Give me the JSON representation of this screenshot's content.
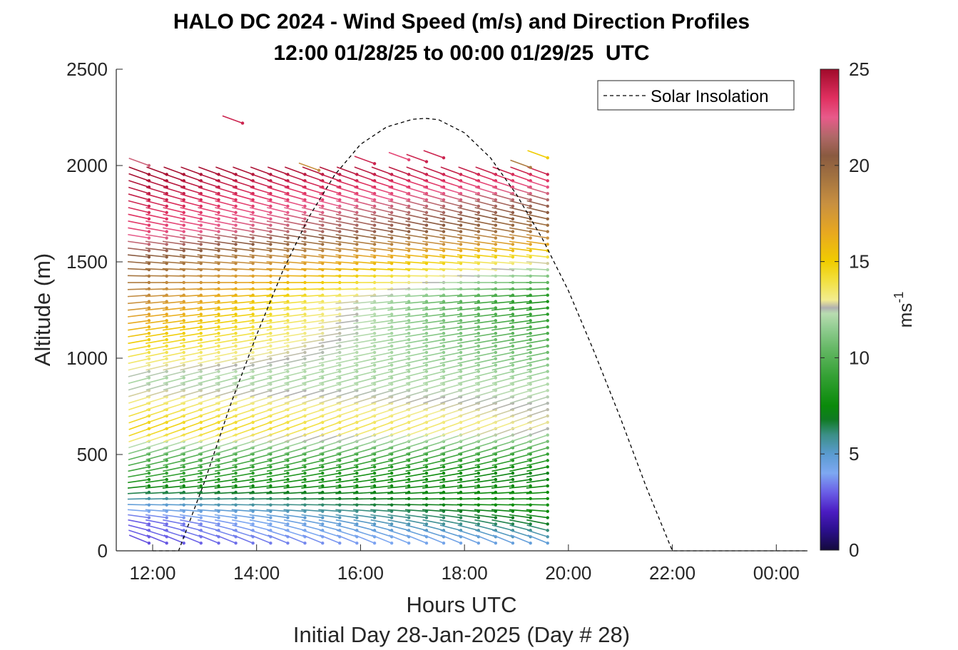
{
  "chart_data": {
    "type": "scatter",
    "subtype": "wind-barb-profile",
    "title": "HALO DC 2024 - Wind Speed (m/s) and Direction Profiles",
    "subtitle": "12:00 01/28/25 to 00:00 01/29/25  UTC",
    "xlabel": "Hours UTC",
    "xlabel2": "Initial Day 28-Jan-2025 (Day # 28)",
    "ylabel": "Altitude (m)",
    "xlim": [
      11.3,
      24.6
    ],
    "ylim": [
      0,
      2500
    ],
    "x_ticks": [
      12,
      14,
      16,
      18,
      20,
      22,
      24
    ],
    "x_tick_labels": [
      "12:00",
      "14:00",
      "16:00",
      "18:00",
      "20:00",
      "22:00",
      "00:00"
    ],
    "y_ticks": [
      0,
      500,
      1000,
      1500,
      2000,
      2500
    ],
    "y_tick_labels": [
      "0",
      "500",
      "1000",
      "1500",
      "2000",
      "2500"
    ],
    "colorbar": {
      "label_base": "ms",
      "label_exp": "-1",
      "range": [
        0,
        25
      ],
      "ticks": [
        0,
        5,
        10,
        15,
        20,
        25
      ],
      "tick_labels": [
        "0",
        "5",
        "10",
        "15",
        "20",
        "25"
      ]
    },
    "legend": {
      "placement": "top-right",
      "entries": [
        "Solar Insolation"
      ]
    },
    "solar_insolation": {
      "x": [
        12.0,
        12.5,
        13.0,
        13.5,
        14.0,
        14.5,
        15.0,
        15.5,
        16.0,
        16.5,
        17.0,
        17.25,
        17.5,
        18.0,
        18.5,
        19.0,
        19.5,
        20.0,
        20.5,
        21.0,
        21.5,
        22.0,
        22.5,
        24.6
      ],
      "y": [
        0,
        0,
        360,
        760,
        1120,
        1450,
        1730,
        1950,
        2110,
        2200,
        2240,
        2245,
        2238,
        2170,
        2040,
        1850,
        1620,
        1350,
        1030,
        690,
        330,
        0,
        0,
        0
      ]
    },
    "profiles": {
      "times": [
        11.93,
        12.27,
        12.6,
        12.93,
        13.27,
        13.6,
        13.93,
        14.27,
        14.6,
        14.93,
        15.27,
        15.6,
        15.93,
        16.27,
        16.6,
        16.93,
        17.27,
        17.6,
        17.93,
        18.27,
        18.6,
        18.93,
        19.27,
        19.6
      ],
      "altitude_start_m": 40,
      "altitude_step_m": 33,
      "altitude_end_m": 1960,
      "speed_knots_alt_m": [
        0,
        50,
        150,
        250,
        400,
        500,
        650,
        900,
        1100,
        1300,
        1500,
        1650,
        1800,
        1950
      ],
      "speed_knots_ms_early": [
        2,
        3,
        3,
        5,
        9,
        10,
        15,
        12,
        15,
        18,
        20,
        23,
        24,
        25
      ],
      "speed_knots_ms_late": [
        4,
        5,
        7,
        8,
        7,
        9,
        13,
        12,
        10,
        8,
        13,
        19,
        21,
        24
      ],
      "direction_knots_deg": [
        120,
        110,
        100,
        90,
        80,
        75,
        70,
        75,
        80,
        85,
        95,
        100,
        105,
        110
      ],
      "top_points": [
        {
          "time": 11.93,
          "alt": 2000,
          "speed": 22
        },
        {
          "time": 13.73,
          "alt": 2220,
          "speed": 24
        },
        {
          "time": 15.2,
          "alt": 1975,
          "speed": 18
        },
        {
          "time": 16.27,
          "alt": 2010,
          "speed": 24
        },
        {
          "time": 16.93,
          "alt": 2030,
          "speed": 23
        },
        {
          "time": 17.27,
          "alt": 2020,
          "speed": 24
        },
        {
          "time": 17.6,
          "alt": 2040,
          "speed": 24
        },
        {
          "time": 19.27,
          "alt": 1990,
          "speed": 19
        },
        {
          "time": 19.6,
          "alt": 2040,
          "speed": 15
        }
      ]
    }
  }
}
